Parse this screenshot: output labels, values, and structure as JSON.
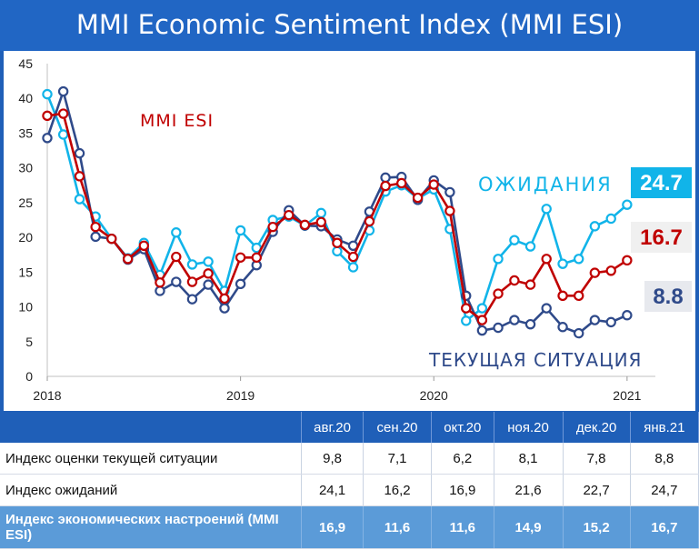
{
  "title": "MMI Economic Sentiment Index (MMI ESI)",
  "colors": {
    "esi": "#c00000",
    "expectations": "#11b4e9",
    "current": "#2f4a8a",
    "header_bg": "#2166c4"
  },
  "chart_data": {
    "type": "line",
    "ylim": [
      0,
      45
    ],
    "yticks": [
      0,
      5,
      10,
      15,
      20,
      25,
      30,
      35,
      40,
      45
    ],
    "xlim": [
      2018.0,
      2021.09
    ],
    "xticks": [
      2018,
      2019,
      2020,
      2021
    ],
    "x_labels": [
      "2018",
      "2019",
      "2020",
      "2021"
    ],
    "grid": false,
    "series": [
      {
        "name": "MMI ESI",
        "key": "esi",
        "x": [
          2018.0,
          2018.083,
          2018.167,
          2018.25,
          2018.333,
          2018.417,
          2018.5,
          2018.583,
          2018.667,
          2018.75,
          2018.833,
          2018.917,
          2019.0,
          2019.083,
          2019.167,
          2019.25,
          2019.333,
          2019.417,
          2019.5,
          2019.583,
          2019.667,
          2019.75,
          2019.833,
          2019.917,
          2020.0,
          2020.083,
          2020.167,
          2020.25,
          2020.333,
          2020.417,
          2020.5,
          2020.583,
          2020.667,
          2020.75,
          2020.833,
          2020.917,
          2021.0
        ],
        "values": [
          37.5,
          37.8,
          28.8,
          21.5,
          19.8,
          16.9,
          18.8,
          13.5,
          17.2,
          13.6,
          14.8,
          11.2,
          17.1,
          17.1,
          21.5,
          23.2,
          21.8,
          22.2,
          19.2,
          17.2,
          22.3,
          27.4,
          27.8,
          25.7,
          27.6,
          23.8,
          9.8,
          8.1,
          11.9,
          13.8,
          13.2,
          16.9,
          11.6,
          11.6,
          14.9,
          15.2,
          16.7
        ]
      },
      {
        "name": "ОЖИДАНИЯ",
        "key": "expectations",
        "x": [
          2018.0,
          2018.083,
          2018.167,
          2018.25,
          2018.333,
          2018.417,
          2018.5,
          2018.583,
          2018.667,
          2018.75,
          2018.833,
          2018.917,
          2019.0,
          2019.083,
          2019.167,
          2019.25,
          2019.333,
          2019.417,
          2019.5,
          2019.583,
          2019.667,
          2019.75,
          2019.833,
          2019.917,
          2020.0,
          2020.083,
          2020.167,
          2020.25,
          2020.333,
          2020.417,
          2020.5,
          2020.583,
          2020.667,
          2020.75,
          2020.833,
          2020.917,
          2021.0
        ],
        "values": [
          40.6,
          34.8,
          25.5,
          23.0,
          19.8,
          17.0,
          19.2,
          14.6,
          20.7,
          16.1,
          16.5,
          12.3,
          21.0,
          18.5,
          22.5,
          23.0,
          21.7,
          23.5,
          18.0,
          15.7,
          21.0,
          26.6,
          27.5,
          25.6,
          26.9,
          21.2,
          8.0,
          9.8,
          16.9,
          19.6,
          18.7,
          24.1,
          16.2,
          16.9,
          21.6,
          22.7,
          24.7
        ]
      },
      {
        "name": "ТЕКУЩАЯ СИТУАЦИЯ",
        "key": "current",
        "x": [
          2018.0,
          2018.083,
          2018.167,
          2018.25,
          2018.333,
          2018.417,
          2018.5,
          2018.583,
          2018.667,
          2018.75,
          2018.833,
          2018.917,
          2019.0,
          2019.083,
          2019.167,
          2019.25,
          2019.333,
          2019.417,
          2019.5,
          2019.583,
          2019.667,
          2019.75,
          2019.833,
          2019.917,
          2020.0,
          2020.083,
          2020.167,
          2020.25,
          2020.333,
          2020.417,
          2020.5,
          2020.583,
          2020.667,
          2020.75,
          2020.833,
          2020.917,
          2021.0
        ],
        "values": [
          34.3,
          41.0,
          32.1,
          20.1,
          19.8,
          16.8,
          18.3,
          12.3,
          13.6,
          11.1,
          13.2,
          9.8,
          13.3,
          16.0,
          20.8,
          23.9,
          21.7,
          21.6,
          19.7,
          18.8,
          23.7,
          28.6,
          28.7,
          25.4,
          28.2,
          26.5,
          11.6,
          6.6,
          7.0,
          8.1,
          7.5,
          9.8,
          7.1,
          6.2,
          8.1,
          7.8,
          8.8
        ]
      }
    ],
    "annotations": [
      {
        "text": "MMI ESI",
        "series": "esi"
      },
      {
        "text": "ОЖИДАНИЯ",
        "series": "expectations"
      },
      {
        "text": "ТЕКУЩАЯ СИТУАЦИЯ",
        "series": "current"
      }
    ],
    "end_labels": {
      "expectations": "24.7",
      "esi": "16.7",
      "current": "8.8"
    }
  },
  "table": {
    "columns": [
      "авг.20",
      "сен.20",
      "окт.20",
      "ноя.20",
      "дек.20",
      "янв.21"
    ],
    "rows": [
      {
        "label": "Индекс оценки текущей ситуации",
        "values": [
          "9,8",
          "7,1",
          "6,2",
          "8,1",
          "7,8",
          "8,8"
        ]
      },
      {
        "label": "Индекс ожиданий",
        "values": [
          "24,1",
          "16,2",
          "16,9",
          "21,6",
          "22,7",
          "24,7"
        ]
      },
      {
        "label": "Индекс экономических настроений (MMI ESI)",
        "values": [
          "16,9",
          "11,6",
          "11,6",
          "14,9",
          "15,2",
          "16,7"
        ]
      }
    ]
  }
}
